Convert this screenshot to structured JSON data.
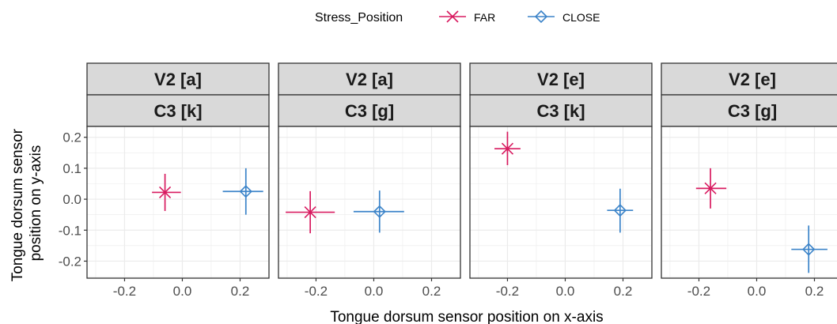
{
  "chart_data": {
    "type": "scatter",
    "xlabel": "Tongue dorsum sensor position on x-axis",
    "ylabel_lines": [
      "Tongue dorsum sensor",
      "position on y-axis"
    ],
    "xlim": [
      -0.33,
      0.3
    ],
    "ylim": [
      -0.255,
      0.235
    ],
    "x_ticks": [
      -0.2,
      0.0,
      0.2
    ],
    "x_tick_labels": [
      "-0.2",
      "0.0",
      "0.2"
    ],
    "y_ticks": [
      -0.2,
      -0.1,
      0.0,
      0.1,
      0.2
    ],
    "y_tick_labels": [
      "-0.2",
      "-0.1",
      "0.0",
      "0.1",
      "0.2"
    ],
    "grid": true,
    "legend": {
      "title": "Stress_Position",
      "position": "top",
      "entries": [
        {
          "name": "FAR",
          "color": "#d81b60",
          "shape": "x"
        },
        {
          "name": "CLOSE",
          "color": "#3c84c9",
          "shape": "diamond-open"
        }
      ]
    },
    "panels": [
      {
        "strip_top": "V2 [a]",
        "strip_bottom": "C3 [k]",
        "points": [
          {
            "series": "FAR",
            "x": -0.06,
            "y": 0.022,
            "x_low": -0.105,
            "x_high": -0.005,
            "y_low": -0.038,
            "y_high": 0.082
          },
          {
            "series": "CLOSE",
            "x": 0.22,
            "y": 0.025,
            "x_low": 0.14,
            "x_high": 0.28,
            "y_low": -0.05,
            "y_high": 0.1
          }
        ]
      },
      {
        "strip_top": "V2 [a]",
        "strip_bottom": "C3 [g]",
        "points": [
          {
            "series": "FAR",
            "x": -0.22,
            "y": -0.042,
            "x_low": -0.305,
            "x_high": -0.135,
            "y_low": -0.11,
            "y_high": 0.026
          },
          {
            "series": "CLOSE",
            "x": 0.02,
            "y": -0.04,
            "x_low": -0.07,
            "x_high": 0.105,
            "y_low": -0.108,
            "y_high": 0.028
          }
        ]
      },
      {
        "strip_top": "V2 [e]",
        "strip_bottom": "C3 [k]",
        "points": [
          {
            "series": "FAR",
            "x": -0.2,
            "y": 0.163,
            "x_low": -0.245,
            "x_high": -0.155,
            "y_low": 0.11,
            "y_high": 0.218
          },
          {
            "series": "CLOSE",
            "x": 0.19,
            "y": -0.036,
            "x_low": 0.145,
            "x_high": 0.235,
            "y_low": -0.108,
            "y_high": 0.034
          }
        ]
      },
      {
        "strip_top": "V2 [e]",
        "strip_bottom": "C3 [g]",
        "points": [
          {
            "series": "FAR",
            "x": -0.16,
            "y": 0.035,
            "x_low": -0.21,
            "x_high": -0.105,
            "y_low": -0.03,
            "y_high": 0.1
          },
          {
            "series": "CLOSE",
            "x": 0.18,
            "y": -0.162,
            "x_low": 0.12,
            "x_high": 0.245,
            "y_low": -0.238,
            "y_high": -0.085
          }
        ]
      }
    ]
  }
}
